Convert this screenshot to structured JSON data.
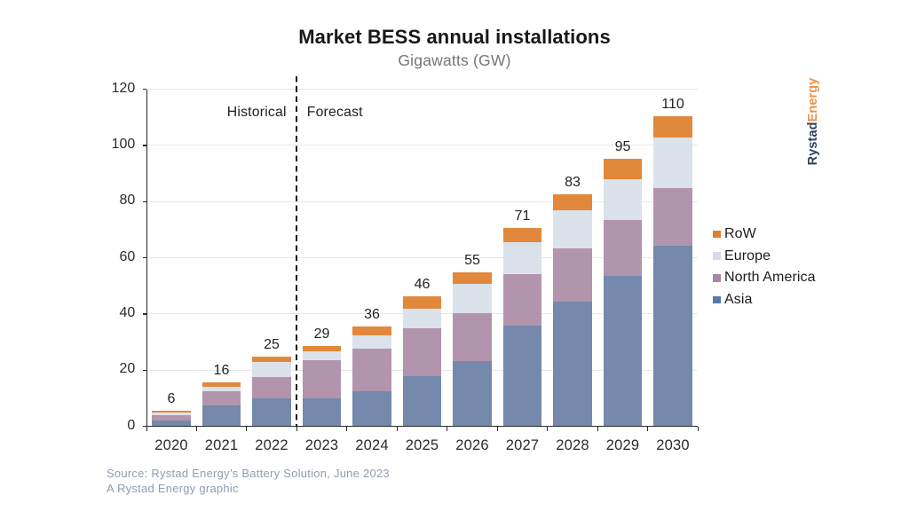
{
  "header": {
    "title": "Market BESS annual installations",
    "subtitle": "Gigawatts (GW)"
  },
  "chart_data": {
    "type": "bar",
    "stacked": true,
    "title": "Market BESS annual installations",
    "subtitle": "Gigawatts (GW)",
    "unit": "GW",
    "xlabel": "",
    "ylabel": "Gigawatts (GW)",
    "categories": [
      "2020",
      "2021",
      "2022",
      "2023",
      "2024",
      "2025",
      "2026",
      "2027",
      "2028",
      "2029",
      "2030"
    ],
    "series": [
      {
        "name": "Asia",
        "color": "#567aa7",
        "bar_fill": "#7489ab",
        "values": [
          2.1,
          7.5,
          10.1,
          10.1,
          12.6,
          18.0,
          23.3,
          35.7,
          44.5,
          53.5,
          64.3
        ]
      },
      {
        "name": "North America",
        "color": "#a886a4",
        "bar_fill": "#b295ac",
        "values": [
          1.9,
          5.0,
          7.4,
          13.5,
          14.9,
          16.8,
          17.0,
          18.6,
          18.8,
          19.8,
          20.6
        ]
      },
      {
        "name": "Europe",
        "color": "#d4dde7",
        "bar_fill": "#dbe2ea",
        "values": [
          0.9,
          1.7,
          5.3,
          3.1,
          4.9,
          7.2,
          10.3,
          11.1,
          13.5,
          14.7,
          17.8
        ]
      },
      {
        "name": "RoW",
        "color": "#df802e",
        "bar_fill": "#e2883c",
        "values": [
          0.6,
          1.4,
          2.0,
          2.0,
          3.1,
          4.4,
          4.3,
          5.2,
          5.9,
          7.1,
          7.7
        ]
      }
    ],
    "total_labels": [
      "6",
      "16",
      "25",
      "29",
      "36",
      "46",
      "55",
      "71",
      "83",
      "95",
      "110"
    ],
    "ylim": [
      0,
      120
    ],
    "yticks": [
      0,
      20,
      40,
      60,
      80,
      100,
      120
    ],
    "grid": "horizontal",
    "legend_position": "right",
    "legend_order": [
      "RoW",
      "Europe",
      "North America",
      "Asia"
    ],
    "annotations": {
      "historical_label": "Historical",
      "forecast_label": "Forecast",
      "divider_after_category": "2022"
    }
  },
  "branding": {
    "logo_part1": "Rystad",
    "logo_part2": "Energy",
    "logo_part1_color": "#2e4160",
    "logo_part2_color": "#e9934b"
  },
  "footer": {
    "source_line1": "Source: Rystad Energy’s Battery Solution, June 2023",
    "source_line2": "A Rystad Energy graphic"
  }
}
